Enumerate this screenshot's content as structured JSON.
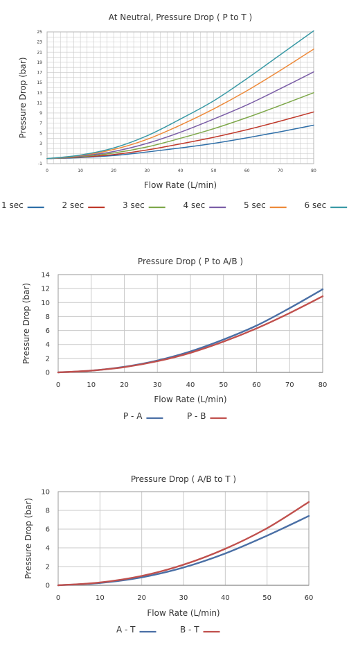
{
  "chart_data": [
    {
      "type": "line",
      "title": "At Neutral, Pressure Drop ( P to T )",
      "xlabel": "Flow Rate (L/min)",
      "ylabel": "Pressure Drop (bar)",
      "xlim": [
        0,
        80
      ],
      "ylim": [
        -1,
        25
      ],
      "x_ticks": [
        0,
        10,
        20,
        30,
        40,
        50,
        60,
        70,
        80
      ],
      "y_ticks": [
        -1,
        1,
        3,
        5,
        7,
        9,
        11,
        13,
        15,
        17,
        19,
        21,
        23,
        25
      ],
      "x_minor_step": 2,
      "y_minor_step": 1,
      "grid": true,
      "legend": "bottom",
      "x": [
        0,
        10,
        20,
        30,
        40,
        50,
        60,
        70,
        80
      ],
      "series": [
        {
          "name": "1 sec",
          "color": "#2f6fa8",
          "values": [
            0,
            0.2,
            0.6,
            1.3,
            2.1,
            3.0,
            4.1,
            5.3,
            6.6
          ]
        },
        {
          "name": "2 sec",
          "color": "#c0392b",
          "values": [
            0,
            0.3,
            0.8,
            1.7,
            2.9,
            4.2,
            5.7,
            7.4,
            9.2
          ]
        },
        {
          "name": "3 sec",
          "color": "#7ea84a",
          "values": [
            0,
            0.4,
            1.1,
            2.3,
            4.0,
            5.9,
            8.1,
            10.5,
            13.0
          ]
        },
        {
          "name": "4 sec",
          "color": "#7b5ea7",
          "values": [
            0,
            0.5,
            1.4,
            3.0,
            5.2,
            7.8,
            10.6,
            13.8,
            17.1
          ]
        },
        {
          "name": "5 sec",
          "color": "#ee8a3a",
          "values": [
            0,
            0.6,
            1.8,
            3.8,
            6.6,
            9.8,
            13.4,
            17.4,
            21.6
          ]
        },
        {
          "name": "6 sec",
          "color": "#3a9aa6",
          "values": [
            0,
            0.7,
            2.1,
            4.5,
            7.8,
            11.4,
            15.8,
            20.5,
            25.2
          ]
        }
      ]
    },
    {
      "type": "line",
      "title": "Pressure Drop  ( P to A/B )",
      "xlabel": "Flow Rate (L/min)",
      "ylabel": "Pressure Drop (bar)",
      "xlim": [
        0,
        80
      ],
      "ylim": [
        0,
        14
      ],
      "x_ticks": [
        0,
        10,
        20,
        30,
        40,
        50,
        60,
        70,
        80
      ],
      "y_ticks": [
        0,
        2,
        4,
        6,
        8,
        10,
        12,
        14
      ],
      "grid": true,
      "legend": "bottom",
      "x": [
        0,
        10,
        20,
        30,
        40,
        50,
        60,
        70,
        80
      ],
      "series": [
        {
          "name": "P - A",
          "color": "#4a6fa5",
          "values": [
            0,
            0.25,
            0.8,
            1.7,
            3.0,
            4.7,
            6.7,
            9.2,
            11.9
          ]
        },
        {
          "name": "P - B",
          "color": "#c0504d",
          "values": [
            0,
            0.25,
            0.75,
            1.6,
            2.8,
            4.4,
            6.3,
            8.5,
            10.9
          ]
        }
      ]
    },
    {
      "type": "line",
      "title": "Pressure Drop  ( A/B to T )",
      "xlabel": "Flow Rate (L/min)",
      "ylabel": "Pressure Drop (bar)",
      "xlim": [
        0,
        60
      ],
      "ylim": [
        0,
        10
      ],
      "x_ticks": [
        0,
        10,
        20,
        30,
        40,
        50,
        60
      ],
      "y_ticks": [
        0,
        2,
        4,
        6,
        8,
        10
      ],
      "grid": true,
      "legend": "bottom",
      "x": [
        0,
        10,
        20,
        30,
        40,
        50,
        60
      ],
      "series": [
        {
          "name": "A - T",
          "color": "#4a6fa5",
          "values": [
            0,
            0.25,
            0.85,
            1.9,
            3.4,
            5.3,
            7.4
          ]
        },
        {
          "name": "B - T",
          "color": "#c0504d",
          "values": [
            0,
            0.3,
            1.0,
            2.2,
            3.9,
            6.1,
            8.9
          ]
        }
      ]
    }
  ]
}
